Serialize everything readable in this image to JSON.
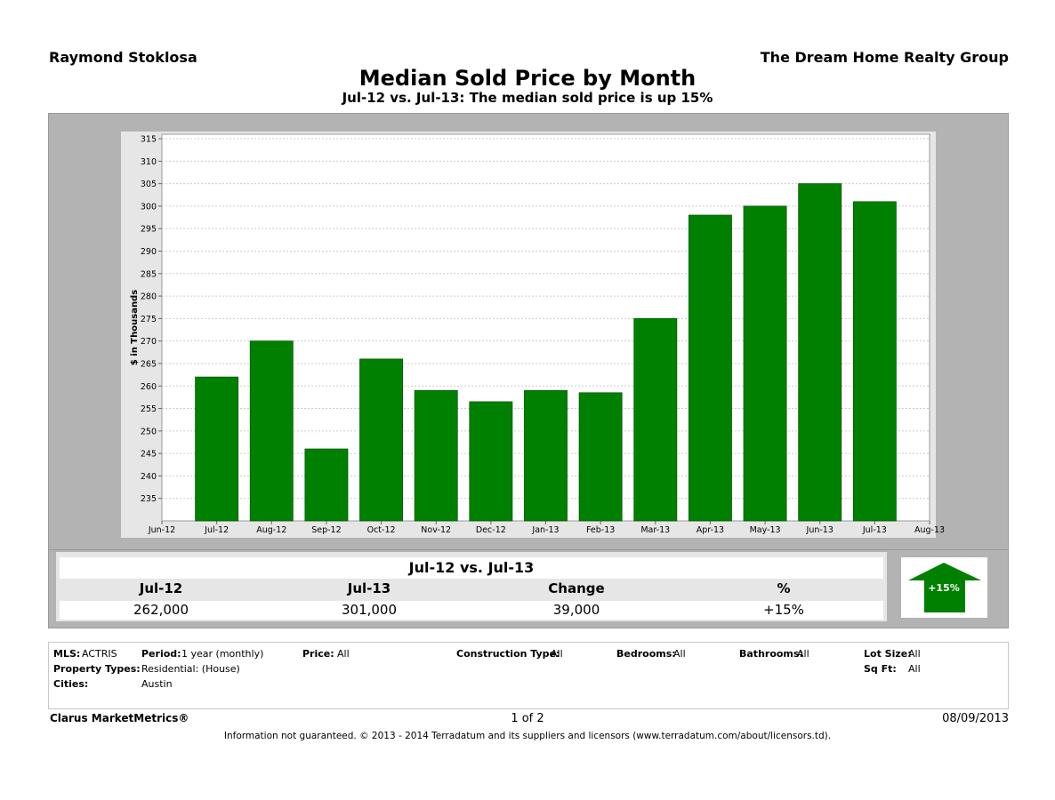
{
  "header": {
    "agent": "Raymond Stoklosa",
    "company": "The Dream Home Realty Group",
    "title": "Median Sold Price by Month",
    "subtitle": "Jul-12 vs. Jul-13:  The median sold price is up 15%"
  },
  "chart_data": {
    "type": "bar",
    "title": "Median Sold Price by Month",
    "ylabel": "$ in Thousands",
    "xlabel": "",
    "x_ticks": [
      "Jun-12",
      "Jul-12",
      "Aug-12",
      "Sep-12",
      "Oct-12",
      "Nov-12",
      "Dec-12",
      "Jan-13",
      "Feb-13",
      "Mar-13",
      "Apr-13",
      "May-13",
      "Jun-13",
      "Jul-13",
      "Aug-13"
    ],
    "categories": [
      "Jul-12",
      "Aug-12",
      "Sep-12",
      "Oct-12",
      "Nov-12",
      "Dec-12",
      "Jan-13",
      "Feb-13",
      "Mar-13",
      "Apr-13",
      "May-13",
      "Jun-13",
      "Jul-13"
    ],
    "values": [
      262,
      270,
      246,
      266,
      259,
      256.5,
      259,
      258.5,
      275,
      298,
      300,
      305,
      301
    ],
    "ylim": [
      230,
      316
    ],
    "y_ticks": [
      235,
      240,
      245,
      250,
      255,
      260,
      265,
      270,
      275,
      280,
      285,
      290,
      295,
      300,
      305,
      310,
      315
    ],
    "grid": true,
    "bar_color": "#008000"
  },
  "summary": {
    "heading": "Jul-12 vs. Jul-13",
    "col1_label": "Jul-12",
    "col2_label": "Jul-13",
    "col3_label": "Change",
    "col4_label": "%",
    "col1_value": "262,000",
    "col2_value": "301,000",
    "col3_value": "39,000",
    "col4_value": "+15%",
    "arrow_label": "+15%",
    "arrow_color": "#008000"
  },
  "details": {
    "mls_label": "MLS:",
    "mls_value": "ACTRIS",
    "period_label": "Period:",
    "period_value": "1 year (monthly)",
    "price_label": "Price:",
    "price_value": "All",
    "construction_label": "Construction Type:",
    "construction_value": "All",
    "bedrooms_label": "Bedrooms:",
    "bedrooms_value": "All",
    "bathrooms_label": "Bathrooms:",
    "bathrooms_value": "All",
    "lotsize_label": "Lot Size:",
    "lotsize_value": "All",
    "proptype_label": "Property Types:",
    "proptype_value": "Residential: (House)",
    "sqft_label": "Sq Ft:",
    "sqft_value": "All",
    "cities_label": "Cities:",
    "cities_value": "Austin"
  },
  "footer": {
    "brand": "Clarus MarketMetrics®",
    "page": "1 of 2",
    "date": "08/09/2013",
    "disclaimer": "Information not guaranteed.  © 2013 - 2014 Terradatum and its suppliers and licensors (www.terradatum.com/about/licensors.td)."
  }
}
